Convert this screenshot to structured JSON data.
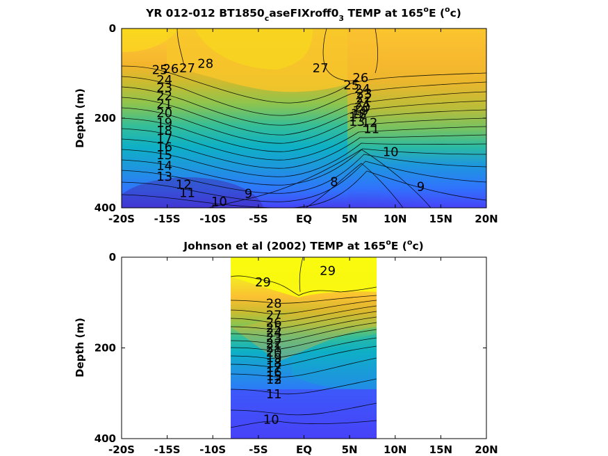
{
  "colormap": [
    "#3e26a8",
    "#4743f8",
    "#2f75fc",
    "#1e96de",
    "#0eb0c5",
    "#36be97",
    "#8dc44e",
    "#ccbb2f",
    "#fbc032",
    "#f5e325",
    "#f9fb0e"
  ],
  "chart_data": [
    {
      "type": "heatmap",
      "title": "YR 012-012 BT1850",
      "title_sub": "c",
      "title_mid": "aseFIXroff0",
      "title_sub2": "3",
      "title_end1": " TEMP at 165",
      "title_sup1": "o",
      "title_end2": "E (",
      "title_sup2": "o",
      "title_end3": "c)",
      "ylabel": "Depth (m)",
      "xticks": [
        "-20S",
        "-15S",
        "-10S",
        "-5S",
        "EQ",
        "5N",
        "10N",
        "15N",
        "20N"
      ],
      "xtick_values": [
        -20,
        -15,
        -10,
        -5,
        0,
        5,
        10,
        15,
        20
      ],
      "yticks": [
        "0",
        "200",
        "400"
      ],
      "ytick_values": [
        0,
        200,
        400
      ],
      "xlim": [
        -20,
        20
      ],
      "ylim": [
        0,
        400
      ],
      "y_reversed": true,
      "data_xlim": [
        -20,
        20
      ],
      "color_range": [
        8,
        29
      ],
      "contour_labels": [
        {
          "text": "28",
          "x": -10.8,
          "y": 78
        },
        {
          "text": "27",
          "x": -12.8,
          "y": 88
        },
        {
          "text": "26",
          "x": -14.6,
          "y": 90
        },
        {
          "text": "25",
          "x": -15.8,
          "y": 92
        },
        {
          "text": "24",
          "x": -15.3,
          "y": 115
        },
        {
          "text": "23",
          "x": -15.3,
          "y": 132
        },
        {
          "text": "22",
          "x": -15.3,
          "y": 150
        },
        {
          "text": "21",
          "x": -15.3,
          "y": 168
        },
        {
          "text": "20",
          "x": -15.3,
          "y": 188
        },
        {
          "text": "19",
          "x": -15.3,
          "y": 210
        },
        {
          "text": "18",
          "x": -15.3,
          "y": 228
        },
        {
          "text": "17",
          "x": -15.3,
          "y": 246
        },
        {
          "text": "16",
          "x": -15.3,
          "y": 264
        },
        {
          "text": "15",
          "x": -15.3,
          "y": 282
        },
        {
          "text": "14",
          "x": -15.3,
          "y": 306
        },
        {
          "text": "13",
          "x": -15.3,
          "y": 330
        },
        {
          "text": "12",
          "x": -13.2,
          "y": 348
        },
        {
          "text": "11",
          "x": -12.8,
          "y": 367
        },
        {
          "text": "10",
          "x": -9.3,
          "y": 386
        },
        {
          "text": "9",
          "x": -6.1,
          "y": 368
        },
        {
          "text": "27",
          "x": 1.8,
          "y": 88
        },
        {
          "text": "26",
          "x": 6.2,
          "y": 110
        },
        {
          "text": "25",
          "x": 5.2,
          "y": 126
        },
        {
          "text": "24",
          "x": 6.4,
          "y": 135
        },
        {
          "text": "23",
          "x": 6.6,
          "y": 145
        },
        {
          "text": "22",
          "x": 6.6,
          "y": 155
        },
        {
          "text": "21",
          "x": 6.5,
          "y": 165
        },
        {
          "text": "20",
          "x": 6.4,
          "y": 176
        },
        {
          "text": "19",
          "x": 6.2,
          "y": 184
        },
        {
          "text": "18",
          "x": 6.0,
          "y": 190
        },
        {
          "text": "17",
          "x": 5.8,
          "y": 198
        },
        {
          "text": "13",
          "x": 5.8,
          "y": 208
        },
        {
          "text": "12",
          "x": 7.2,
          "y": 210
        },
        {
          "text": "11",
          "x": 7.4,
          "y": 224
        },
        {
          "text": "10",
          "x": 9.5,
          "y": 275
        },
        {
          "text": "9",
          "x": 12.8,
          "y": 353
        },
        {
          "text": "8",
          "x": 3.3,
          "y": 342
        }
      ]
    },
    {
      "type": "heatmap",
      "title": "Johnson et al (2002) TEMP at 165",
      "title_sup1": "o",
      "title_end2": "E (",
      "title_sup2": "o",
      "title_end3": "c)",
      "ylabel": "Depth (m)",
      "xticks": [
        "-20S",
        "-15S",
        "-10S",
        "-5S",
        "EQ",
        "5N",
        "10N",
        "15N",
        "20N"
      ],
      "xtick_values": [
        -20,
        -15,
        -10,
        -5,
        0,
        5,
        10,
        15,
        20
      ],
      "yticks": [
        "0",
        "200",
        "400"
      ],
      "ytick_values": [
        0,
        200,
        400
      ],
      "xlim": [
        -20,
        20
      ],
      "ylim": [
        0,
        400
      ],
      "y_reversed": true,
      "data_xlim": [
        -8,
        8
      ],
      "color_range": [
        8,
        29
      ],
      "contour_labels": [
        {
          "text": "29",
          "x": -4.5,
          "y": 55
        },
        {
          "text": "29",
          "x": 2.6,
          "y": 30
        },
        {
          "text": "28",
          "x": -3.3,
          "y": 102
        },
        {
          "text": "27",
          "x": -3.3,
          "y": 128
        },
        {
          "text": "26",
          "x": -3.3,
          "y": 144
        },
        {
          "text": "25",
          "x": -3.3,
          "y": 156
        },
        {
          "text": "24",
          "x": -3.3,
          "y": 166
        },
        {
          "text": "23",
          "x": -3.3,
          "y": 178
        },
        {
          "text": "22",
          "x": -3.3,
          "y": 190
        },
        {
          "text": "21",
          "x": -3.3,
          "y": 200
        },
        {
          "text": "20",
          "x": -3.3,
          "y": 210
        },
        {
          "text": "19",
          "x": -3.3,
          "y": 222
        },
        {
          "text": "18",
          "x": -3.3,
          "y": 234
        },
        {
          "text": "17",
          "x": -3.3,
          "y": 244
        },
        {
          "text": "16",
          "x": -3.3,
          "y": 254
        },
        {
          "text": "15",
          "x": -3.3,
          "y": 262
        },
        {
          "text": "13",
          "x": -3.3,
          "y": 270
        },
        {
          "text": "12",
          "x": -3.3,
          "y": 270
        },
        {
          "text": "11",
          "x": -3.3,
          "y": 302
        },
        {
          "text": "10",
          "x": -3.6,
          "y": 358
        }
      ]
    }
  ]
}
